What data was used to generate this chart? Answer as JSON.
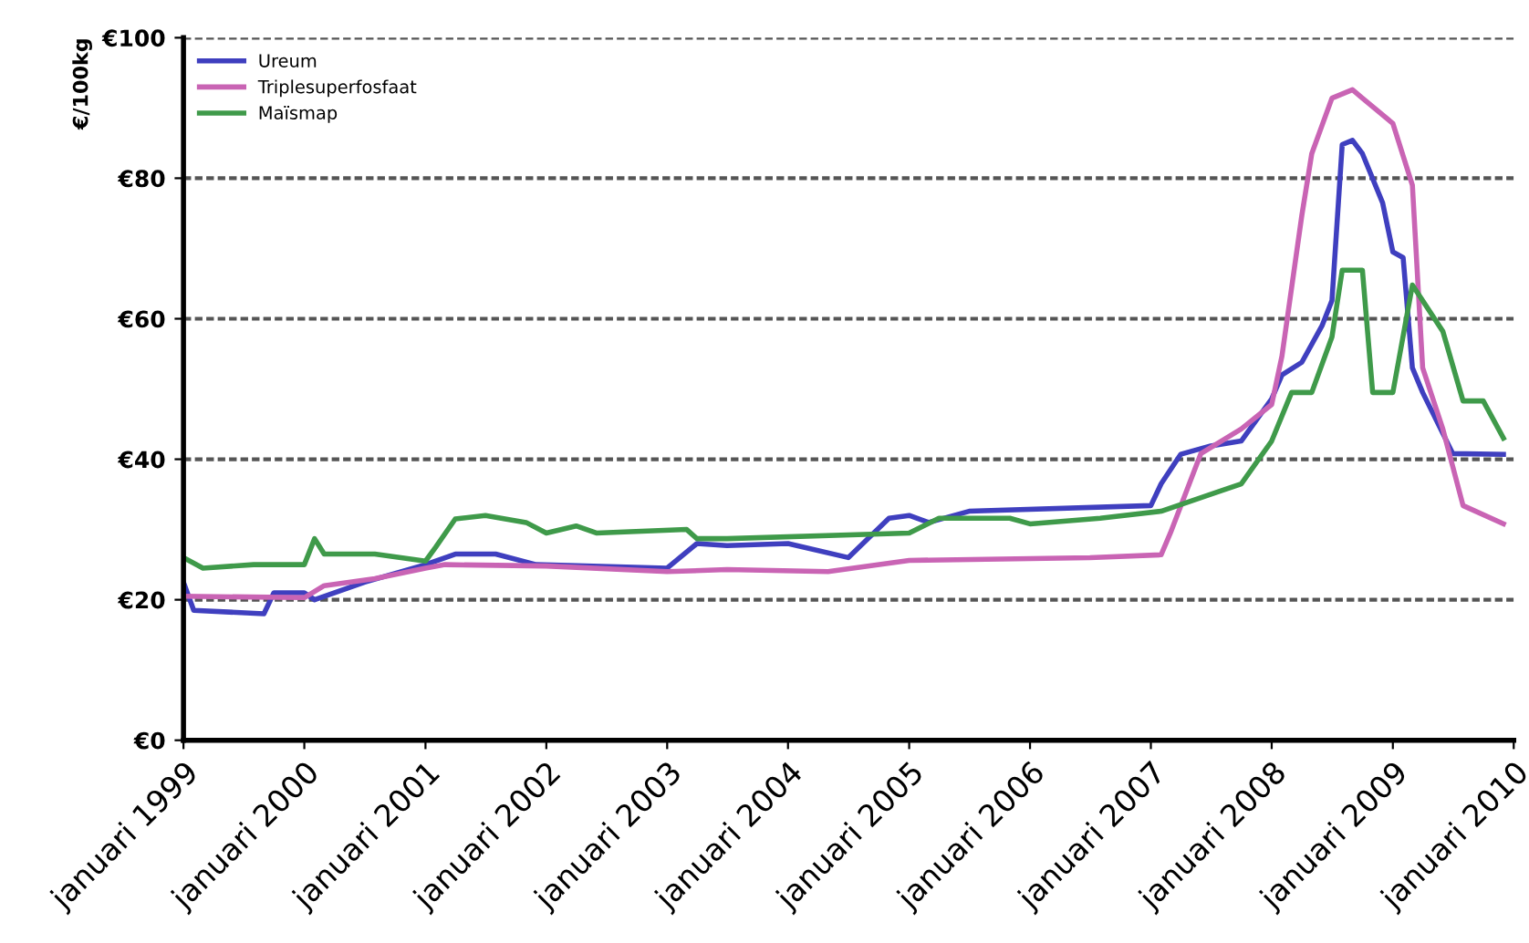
{
  "chart_data": {
    "type": "line",
    "ylabel": "€/100kg",
    "xlim": [
      "1999-01",
      "2010-01"
    ],
    "ylim": [
      0,
      100
    ],
    "xticks": [
      {
        "value": "1999-01",
        "label": "januari 1999"
      },
      {
        "value": "2000-01",
        "label": "januari 2000"
      },
      {
        "value": "2001-01",
        "label": "januari 2001"
      },
      {
        "value": "2002-01",
        "label": "januari 2002"
      },
      {
        "value": "2003-01",
        "label": "januari 2003"
      },
      {
        "value": "2004-01",
        "label": "januari 2004"
      },
      {
        "value": "2005-01",
        "label": "januari 2005"
      },
      {
        "value": "2006-01",
        "label": "januari 2006"
      },
      {
        "value": "2007-01",
        "label": "januari 2007"
      },
      {
        "value": "2008-01",
        "label": "januari 2008"
      },
      {
        "value": "2009-01",
        "label": "januari 2009"
      },
      {
        "value": "2010-01",
        "label": "januari 2010"
      }
    ],
    "yticks": [
      {
        "value": 0,
        "label": "€0"
      },
      {
        "value": 20,
        "label": "€20"
      },
      {
        "value": 40,
        "label": "€40"
      },
      {
        "value": 60,
        "label": "€60"
      },
      {
        "value": 80,
        "label": "€80"
      },
      {
        "value": 100,
        "label": "€100"
      }
    ],
    "grid": "y",
    "legend": "top left",
    "marker": "none",
    "line_style": "solid",
    "series": [
      {
        "name": "Ureum",
        "color": "#3f3fbf",
        "x": [
          "1999-01",
          "1999-02",
          "1999-09",
          "1999-10",
          "2000-01",
          "2000-02",
          "2000-07",
          "2001-01",
          "2001-04",
          "2001-08",
          "2001-12",
          "2003-01",
          "2003-04",
          "2003-07",
          "2004-01",
          "2004-07",
          "2004-11",
          "2005-01",
          "2005-03",
          "2005-07",
          "2007-01",
          "2007-02",
          "2007-04",
          "2007-07",
          "2007-10",
          "2008-01",
          "2008-02",
          "2008-04",
          "2008-06",
          "2008-07",
          "2008-08",
          "2008-09",
          "2008-10",
          "2008-12",
          "2009-01",
          "2009-02",
          "2009-03",
          "2009-04",
          "2009-07",
          "2009-12"
        ],
        "values": [
          22.5,
          18.5,
          18,
          21,
          21,
          20,
          22.5,
          25,
          26.5,
          26.5,
          25,
          24.5,
          28,
          27.7,
          28,
          26,
          31.6,
          32,
          31,
          32.6,
          33.4,
          36.5,
          40.7,
          41.9,
          42.6,
          48.6,
          52,
          53.8,
          59,
          62.6,
          84.8,
          85.4,
          83.5,
          76.5,
          69.5,
          68.7,
          53,
          49.5,
          40.8,
          40.7
        ]
      },
      {
        "name": "Triplesuperfosfaat",
        "color": "#c964b4",
        "x": [
          "1999-01",
          "2000-01",
          "2000-03",
          "2000-08",
          "2001-01",
          "2001-03",
          "2002-01",
          "2003-01",
          "2003-07",
          "2004-05",
          "2005-01",
          "2006-07",
          "2007-02",
          "2007-03",
          "2007-06",
          "2007-10",
          "2008-01",
          "2008-02",
          "2008-04",
          "2008-05",
          "2008-07",
          "2008-09",
          "2008-10",
          "2009-01",
          "2009-03",
          "2009-04",
          "2009-06",
          "2009-08",
          "2009-12"
        ],
        "values": [
          20.5,
          20.3,
          22,
          23,
          24.5,
          25,
          24.8,
          24,
          24.3,
          24,
          25.6,
          26,
          26.4,
          29.5,
          40.8,
          44.3,
          47.8,
          54.7,
          74.7,
          83.5,
          91.4,
          92.6,
          91.4,
          87.8,
          79,
          53,
          44.3,
          33.4,
          30.8
        ]
      },
      {
        "name": "Maïsmap",
        "color": "#3f9a4a",
        "x": [
          "1999-01",
          "1999-03",
          "1999-08",
          "2000-01",
          "2000-02",
          "2000-03",
          "2000-08",
          "2001-01",
          "2001-02",
          "2001-04",
          "2001-07",
          "2001-11",
          "2002-01",
          "2002-04",
          "2002-06",
          "2003-03",
          "2003-04",
          "2003-07",
          "2005-01",
          "2005-04",
          "2005-11",
          "2006-01",
          "2006-08",
          "2007-02",
          "2007-08",
          "2007-10",
          "2008-01",
          "2008-03",
          "2008-05",
          "2008-07",
          "2008-08",
          "2008-10",
          "2008-11",
          "2009-01",
          "2009-03",
          "2009-06",
          "2009-08",
          "2009-10",
          "2009-12"
        ],
        "values": [
          26,
          24.5,
          25,
          25,
          28.7,
          26.5,
          26.5,
          25.5,
          27.5,
          31.5,
          32,
          31,
          29.5,
          30.5,
          29.5,
          30,
          28.7,
          28.7,
          29.5,
          31.6,
          31.6,
          30.8,
          31.6,
          32.6,
          35.5,
          36.5,
          42.6,
          49.5,
          49.5,
          57.4,
          66.9,
          66.9,
          49.5,
          49.5,
          64.8,
          58.2,
          48.3,
          48.3,
          43
        ]
      }
    ]
  }
}
